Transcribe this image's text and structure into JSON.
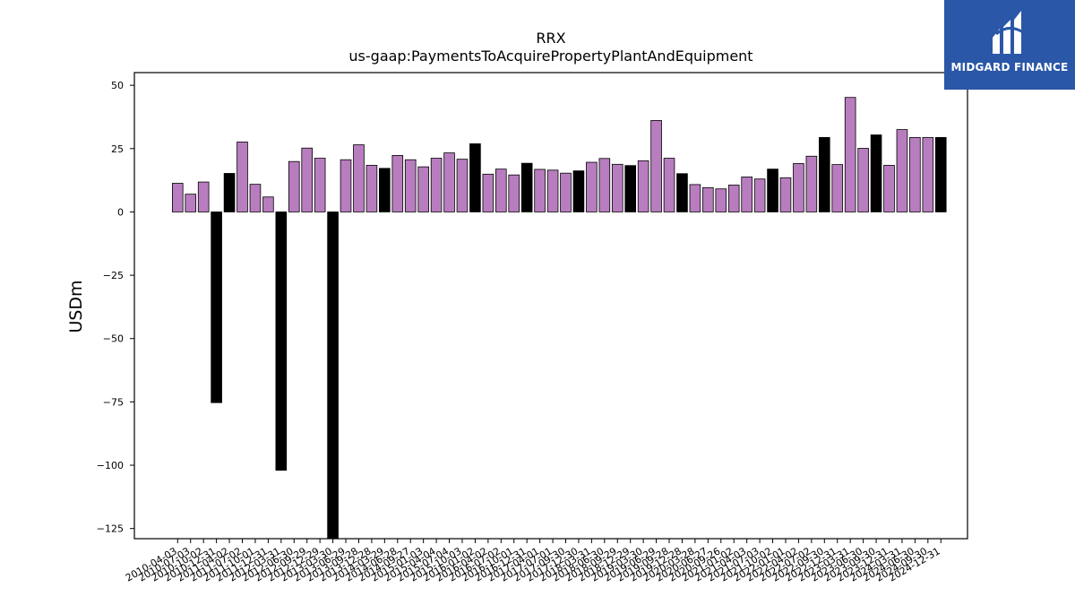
{
  "brand": {
    "name": "MIDGARD FINANCE",
    "bg_color": "#2a57a8"
  },
  "colors": {
    "positive": "#b87dbf",
    "negative": "#000000",
    "edge": "#000000"
  },
  "chart_data": {
    "type": "bar",
    "title": "RRX",
    "subtitle": "us-gaap:PaymentsToAcquirePropertyPlantAndEquipment",
    "ylabel": "USDm",
    "xlabel": "",
    "ylim": [
      -129,
      55
    ],
    "yticks": [
      50,
      25,
      0,
      -25,
      -50,
      -75,
      -100,
      -125
    ],
    "grid": false,
    "categories": [
      "2010-04-03",
      "2010-07-03",
      "2010-10-02",
      "2010-12-31",
      "2011-04-02",
      "2011-07-02",
      "2011-10-01",
      "2011-12-31",
      "2012-03-31",
      "2012-06-30",
      "2012-09-29",
      "2012-12-29",
      "2013-03-30",
      "2013-06-29",
      "2013-09-28",
      "2013-12-28",
      "2014-03-29",
      "2014-06-28",
      "2014-09-27",
      "2015-01-03",
      "2015-04-04",
      "2015-07-04",
      "2015-10-03",
      "2016-01-02",
      "2016-04-02",
      "2016-07-02",
      "2016-10-01",
      "2016-12-31",
      "2017-04-01",
      "2017-07-01",
      "2017-09-30",
      "2017-12-30",
      "2018-03-31",
      "2018-06-30",
      "2018-09-29",
      "2018-12-29",
      "2019-03-30",
      "2019-06-29",
      "2019-09-28",
      "2019-12-28",
      "2020-03-28",
      "2020-06-27",
      "2020-09-26",
      "2021-01-02",
      "2021-04-03",
      "2021-07-03",
      "2021-10-02",
      "2022-01-01",
      "2022-04-02",
      "2022-07-02",
      "2022-09-30",
      "2022-12-31",
      "2023-03-31",
      "2023-06-30",
      "2023-09-30",
      "2023-12-31",
      "2024-03-31",
      "2024-06-30",
      "2024-09-30",
      "2024-12-31"
    ],
    "values": [
      11.3,
      7.0,
      11.8,
      -75.3,
      15.2,
      27.6,
      10.9,
      5.9,
      -102.0,
      19.9,
      25.2,
      21.2,
      -130.0,
      20.6,
      26.5,
      18.4,
      17.2,
      22.3,
      20.6,
      17.8,
      21.2,
      23.3,
      20.8,
      26.9,
      14.9,
      16.9,
      14.6,
      19.2,
      16.8,
      16.5,
      15.3,
      16.2,
      19.6,
      21.1,
      18.8,
      18.3,
      20.2,
      36.1,
      21.2,
      15.1,
      10.8,
      9.6,
      9.1,
      10.6,
      13.8,
      13.0,
      16.9,
      13.5,
      19.1,
      22.0,
      29.4,
      18.7,
      45.2,
      25.1,
      30.4,
      18.4,
      32.5,
      29.4,
      29.4,
      29.4
    ],
    "highlight_index": [
      3,
      4,
      8,
      12,
      16,
      23,
      27,
      31,
      35,
      39,
      46,
      50,
      54,
      59
    ]
  }
}
